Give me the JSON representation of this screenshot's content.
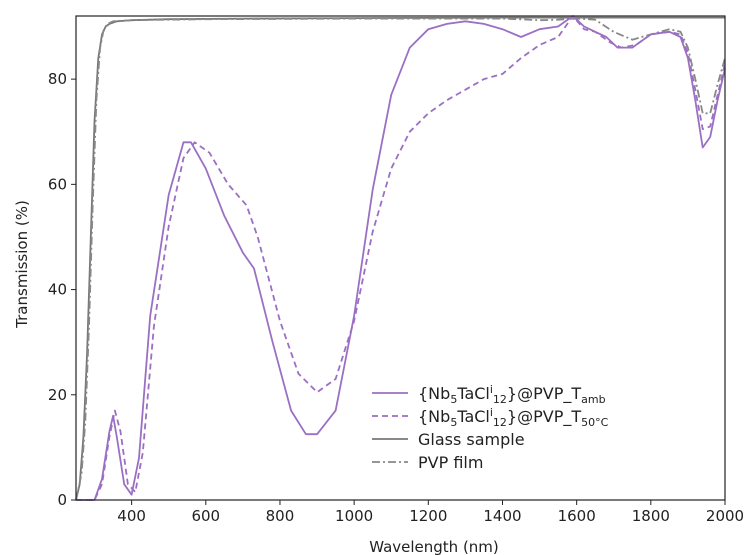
{
  "chart_data": {
    "type": "line",
    "xlabel": "Wavelength (nm)",
    "ylabel": "Transmission (%)",
    "xlim": [
      250,
      2000
    ],
    "ylim": [
      0,
      92
    ],
    "xticks": [
      400,
      600,
      800,
      1000,
      1200,
      1400,
      1600,
      1800,
      2000
    ],
    "yticks": [
      0,
      20,
      40,
      60,
      80
    ],
    "grid": false,
    "legend_position": "bottom-center",
    "series": [
      {
        "name": "{Nb5TaCli12}@PVP_Tamb",
        "label_parts": {
          "a": "{Nb",
          "b": "5",
          "c": "TaCl",
          "d": "i",
          "e": "12",
          "f": "}@PVP_T",
          "g": "amb"
        },
        "color": "#9b6fc3",
        "style": "solid",
        "x": [
          250,
          300,
          320,
          340,
          350,
          360,
          380,
          400,
          420,
          450,
          500,
          540,
          560,
          600,
          650,
          700,
          730,
          780,
          830,
          870,
          900,
          950,
          1000,
          1050,
          1100,
          1150,
          1200,
          1250,
          1300,
          1350,
          1400,
          1450,
          1500,
          1550,
          1590,
          1620,
          1650,
          1680,
          1710,
          1750,
          1800,
          1850,
          1880,
          1900,
          1920,
          1940,
          1960,
          1980,
          2000
        ],
        "y": [
          0,
          0,
          4,
          13,
          16,
          12,
          3,
          1,
          8,
          35,
          58,
          68,
          68,
          63,
          54,
          47,
          44,
          30,
          17,
          12.5,
          12.5,
          17,
          35,
          59,
          77,
          86,
          89.5,
          90.5,
          91,
          90.5,
          89.5,
          88,
          89.5,
          90,
          92,
          90,
          89,
          88,
          86,
          86,
          88.5,
          89,
          88,
          84,
          76,
          67,
          69,
          76,
          82
        ]
      },
      {
        "name": "{Nb5TaCli12}@PVP_T50°C",
        "label_parts": {
          "a": "{Nb",
          "b": "5",
          "c": "TaCl",
          "d": "i",
          "e": "12",
          "f": "}@PVP_T",
          "g": "50°C"
        },
        "color": "#9b6fc3",
        "style": "dashed",
        "x": [
          250,
          300,
          320,
          340,
          355,
          370,
          390,
          410,
          430,
          460,
          500,
          540,
          570,
          610,
          660,
          710,
          740,
          800,
          850,
          900,
          950,
          1000,
          1050,
          1100,
          1150,
          1200,
          1250,
          1300,
          1350,
          1400,
          1450,
          1500,
          1550,
          1590,
          1620,
          1650,
          1690,
          1720,
          1760,
          1800,
          1850,
          1880,
          1900,
          1920,
          1940,
          1960,
          1980,
          2000
        ],
        "y": [
          0,
          0,
          3,
          12,
          17,
          13,
          3,
          1.5,
          9,
          33,
          52,
          65,
          68,
          66,
          60,
          56,
          50,
          34,
          24,
          20.5,
          23,
          34,
          51,
          63,
          70,
          73.5,
          76,
          78,
          80,
          81,
          84,
          86.5,
          88,
          92,
          89.5,
          89,
          87,
          86,
          86.5,
          88.5,
          89,
          88.5,
          85,
          78,
          70.5,
          71,
          77,
          83
        ]
      },
      {
        "name": "Glass sample",
        "label_parts": {
          "a": "Glass sample"
        },
        "color": "#777777",
        "style": "solid",
        "x": [
          250,
          260,
          270,
          280,
          290,
          300,
          310,
          320,
          330,
          340,
          360,
          400,
          500,
          700,
          1000,
          1400,
          1800,
          2000
        ],
        "y": [
          0,
          3,
          12,
          28,
          50,
          72,
          84,
          88.5,
          90,
          90.5,
          91,
          91.2,
          91.4,
          91.5,
          91.6,
          91.7,
          91.7,
          91.7
        ]
      },
      {
        "name": "PVP film",
        "label_parts": {
          "a": "PVP film"
        },
        "color": "#888888",
        "style": "dashdot",
        "x": [
          250,
          265,
          275,
          285,
          295,
          305,
          315,
          325,
          335,
          350,
          400,
          600,
          1000,
          1400,
          1500,
          1550,
          1600,
          1650,
          1700,
          1750,
          1800,
          1850,
          1880,
          1900,
          1920,
          1940,
          1960,
          1980,
          2000
        ],
        "y": [
          0,
          5,
          15,
          33,
          56,
          76,
          86,
          89.5,
          90.5,
          91,
          91.2,
          91.4,
          91.5,
          91.5,
          91.2,
          91.3,
          91.5,
          91.3,
          89,
          87.5,
          88.5,
          89.5,
          89,
          86,
          80,
          73.5,
          73.5,
          79,
          84
        ]
      }
    ]
  }
}
